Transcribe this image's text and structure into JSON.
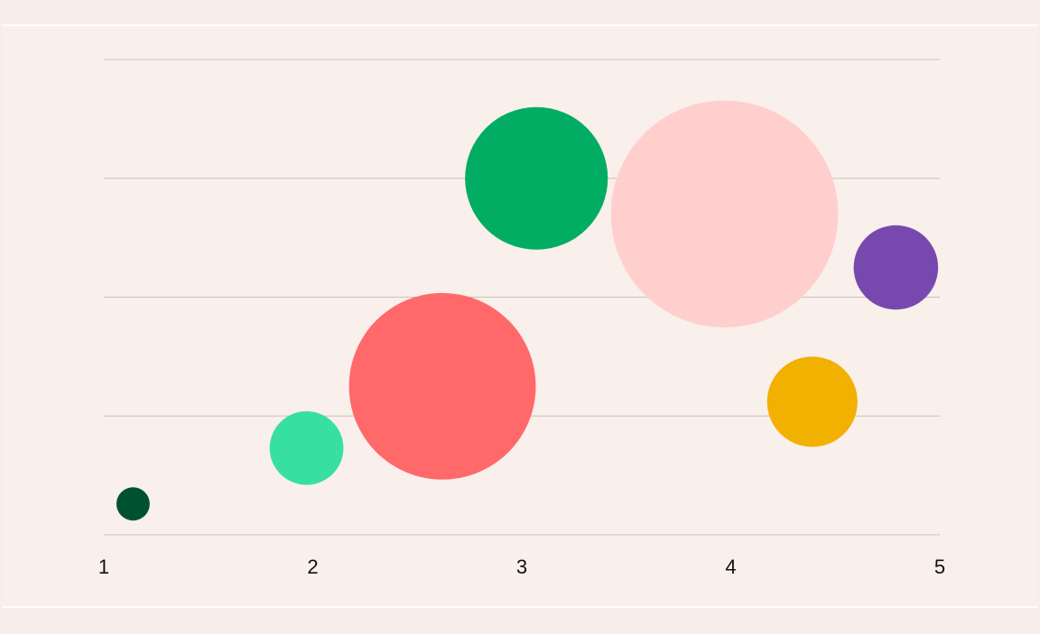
{
  "chart_data": {
    "type": "scatter",
    "title": "",
    "xlabel": "",
    "ylabel": "",
    "xlim": [
      1,
      5
    ],
    "ylim": [
      0,
      4
    ],
    "x_ticks": [
      "1",
      "2",
      "3",
      "4",
      "5"
    ],
    "y_grid_values": [
      0,
      1,
      2,
      3,
      4
    ],
    "grid": "horizontal",
    "points": [
      {
        "x": 1.14,
        "y": 0.26,
        "size": 0.28,
        "color": "#00512f"
      },
      {
        "x": 1.97,
        "y": 0.73,
        "size": 0.62,
        "color": "#38e0a0"
      },
      {
        "x": 2.62,
        "y": 1.25,
        "size": 1.57,
        "color": "#ff6969"
      },
      {
        "x": 3.07,
        "y": 3.0,
        "size": 1.2,
        "color": "#00ad63"
      },
      {
        "x": 3.97,
        "y": 2.7,
        "size": 1.91,
        "color": "#ffcdcb",
        "opacity": 0.97
      },
      {
        "x": 4.39,
        "y": 1.12,
        "size": 0.76,
        "color": "#f2b000"
      },
      {
        "x": 4.79,
        "y": 2.25,
        "size": 0.71,
        "color": "#7749ae"
      }
    ]
  }
}
